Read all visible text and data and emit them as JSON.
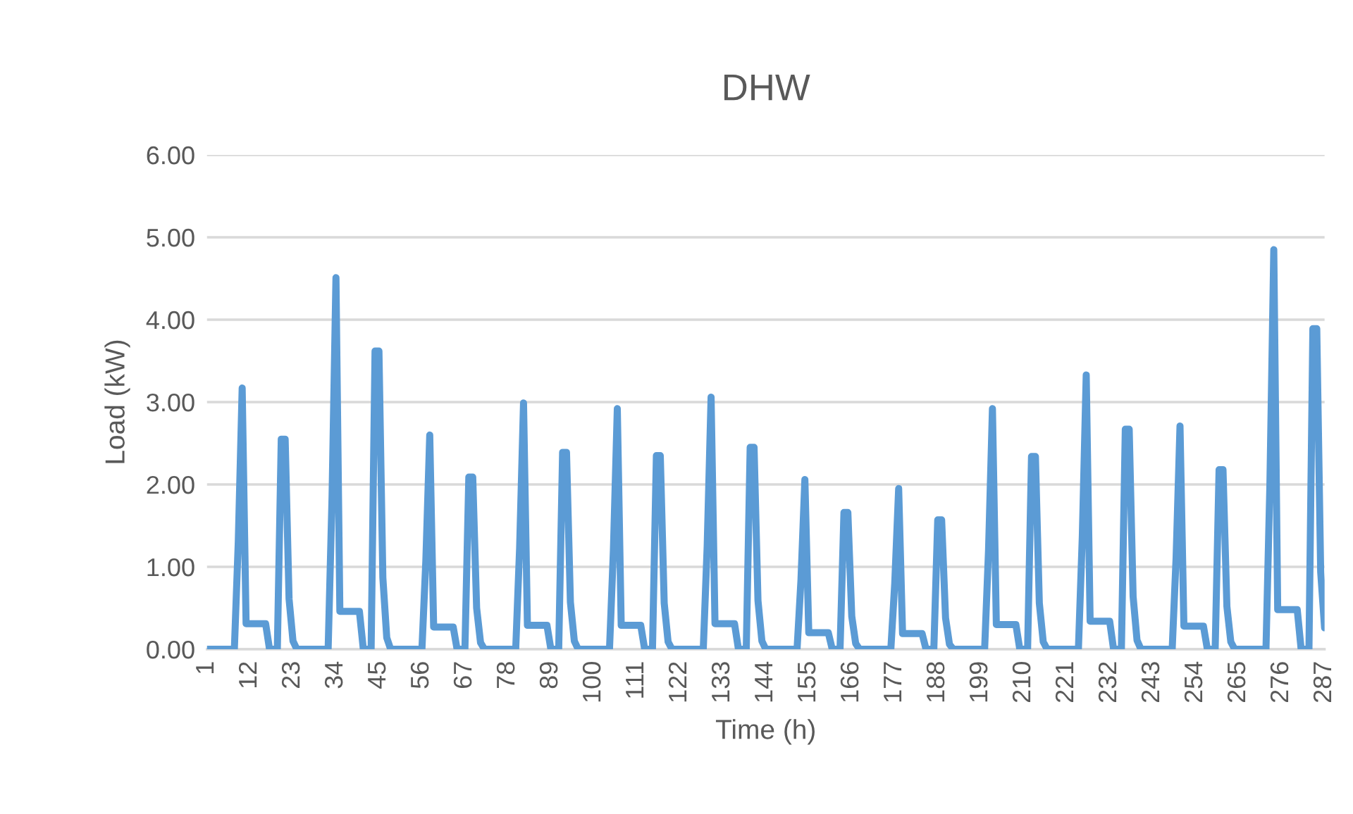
{
  "chart_data": {
    "type": "line",
    "title": "DHW",
    "xlabel": "Time (h)",
    "ylabel": "Load (kW)",
    "series": [
      {
        "color": "#5b9bd5",
        "x": [
          1,
          8,
          9,
          10,
          11,
          16,
          17,
          19,
          20,
          21,
          22,
          23,
          24,
          32,
          33,
          34,
          35,
          40,
          41,
          43,
          44,
          45,
          46,
          47,
          48,
          56,
          57,
          58,
          59,
          64,
          65,
          67,
          68,
          69,
          70,
          71,
          72,
          80,
          81,
          82,
          83,
          88,
          89,
          91,
          92,
          93,
          94,
          95,
          96,
          104,
          105,
          106,
          107,
          112,
          113,
          115,
          116,
          117,
          118,
          119,
          120,
          128,
          129,
          130,
          131,
          136,
          137,
          139,
          140,
          141,
          142,
          143,
          144,
          152,
          153,
          154,
          155,
          160,
          161,
          163,
          164,
          165,
          166,
          167,
          168,
          176,
          177,
          178,
          179,
          184,
          185,
          187,
          188,
          189,
          190,
          191,
          192,
          200,
          201,
          202,
          203,
          208,
          209,
          211,
          212,
          213,
          214,
          215,
          216,
          224,
          225,
          226,
          227,
          232,
          233,
          235,
          236,
          237,
          238,
          239,
          240,
          248,
          249,
          250,
          251,
          256,
          257,
          259,
          260,
          261,
          262,
          263,
          264,
          272,
          273,
          274,
          275,
          280,
          281,
          283,
          284,
          285,
          286,
          287
        ],
        "values": [
          0,
          0,
          1.3,
          3.17,
          0.31,
          0.31,
          0,
          0,
          2.55,
          2.55,
          0.61,
          0.1,
          0,
          0,
          1.85,
          4.51,
          0.46,
          0.46,
          0,
          0,
          3.62,
          3.62,
          0.87,
          0.14,
          0,
          0,
          1.07,
          2.6,
          0.27,
          0.27,
          0,
          0,
          2.09,
          2.09,
          0.5,
          0.08,
          0,
          0,
          1.23,
          2.99,
          0.29,
          0.29,
          0,
          0,
          2.39,
          2.39,
          0.57,
          0.1,
          0,
          0,
          1.2,
          2.92,
          0.29,
          0.29,
          0,
          0,
          2.35,
          2.35,
          0.56,
          0.09,
          0,
          0,
          1.25,
          3.06,
          0.31,
          0.31,
          0,
          0,
          2.45,
          2.45,
          0.59,
          0.1,
          0,
          0,
          0.84,
          2.06,
          0.2,
          0.2,
          0,
          0,
          1.66,
          1.66,
          0.4,
          0.07,
          0,
          0,
          0.8,
          1.95,
          0.19,
          0.19,
          0,
          0,
          1.57,
          1.57,
          0.38,
          0.06,
          0,
          0,
          1.2,
          2.92,
          0.3,
          0.3,
          0,
          0,
          2.34,
          2.34,
          0.56,
          0.09,
          0,
          0,
          1.37,
          3.33,
          0.34,
          0.34,
          0,
          0,
          2.67,
          2.67,
          0.64,
          0.11,
          0,
          0,
          1.11,
          2.71,
          0.28,
          0.28,
          0,
          0,
          2.18,
          2.18,
          0.52,
          0.09,
          0,
          0,
          1.99,
          4.85,
          0.48,
          0.48,
          0,
          0,
          3.89,
          3.89,
          0.94,
          0.26
        ]
      }
    ],
    "xlim": [
      1,
      287
    ],
    "xticks": [
      1,
      12,
      23,
      34,
      45,
      56,
      67,
      78,
      89,
      100,
      111,
      122,
      133,
      144,
      155,
      166,
      177,
      188,
      199,
      210,
      221,
      232,
      243,
      254,
      265,
      276,
      287
    ],
    "ylim": [
      0,
      6
    ],
    "yticks": [
      {
        "value": 0,
        "label": "0.00"
      },
      {
        "value": 1,
        "label": "1.00"
      },
      {
        "value": 2,
        "label": "2.00"
      },
      {
        "value": 3,
        "label": "3.00"
      },
      {
        "value": 4,
        "label": "4.00"
      },
      {
        "value": 5,
        "label": "5.00"
      },
      {
        "value": 6,
        "label": "6.00"
      }
    ],
    "grid": "y",
    "line_style": "solid"
  }
}
